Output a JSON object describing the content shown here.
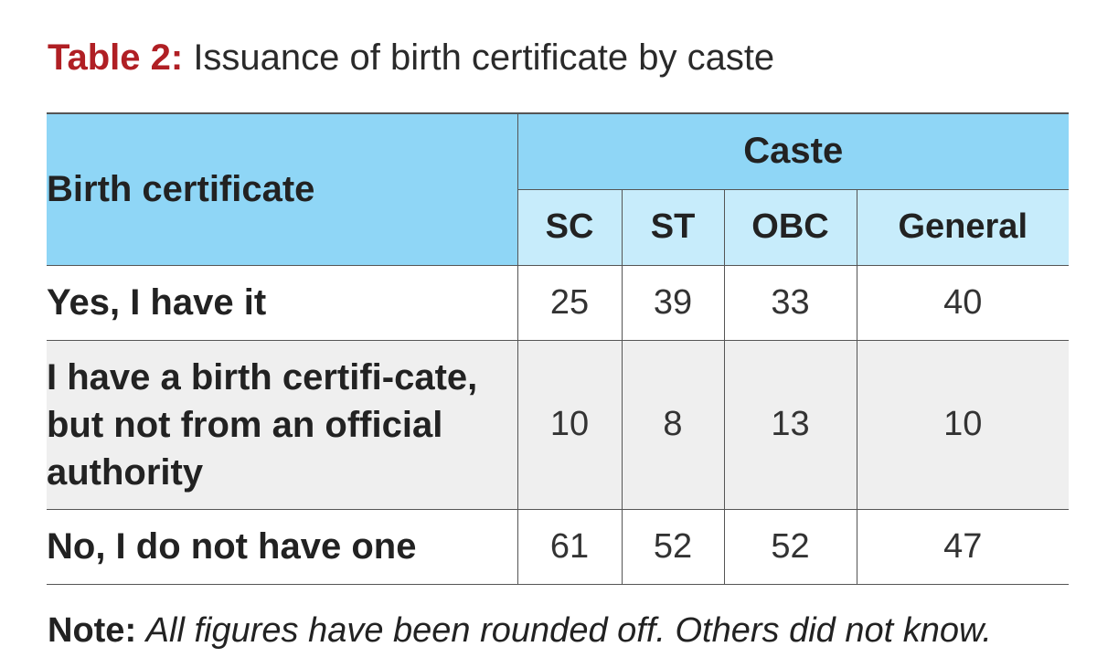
{
  "title": {
    "label": "Table 2:",
    "text": "Issuance of birth certificate by caste"
  },
  "table": {
    "row_header": "Birth certificate",
    "group_header": "Caste",
    "columns": [
      "SC",
      "ST",
      "OBC",
      "General"
    ],
    "rows": [
      {
        "label": "Yes, I have it",
        "values": [
          "25",
          "39",
          "33",
          "40"
        ]
      },
      {
        "label": "I have a birth certifi-cate, but not from an official authority",
        "values": [
          "10",
          "8",
          "13",
          "10"
        ]
      },
      {
        "label": "No, I do not have one",
        "values": [
          "61",
          "52",
          "52",
          "47"
        ]
      }
    ]
  },
  "note": {
    "label": "Note:",
    "text": "All figures have been rounded off. Others did not know."
  },
  "colors": {
    "title_accent": "#b01f24",
    "header_dark": "#8fd6f6",
    "header_light": "#c7ecfb",
    "row_shade": "#efefef"
  }
}
